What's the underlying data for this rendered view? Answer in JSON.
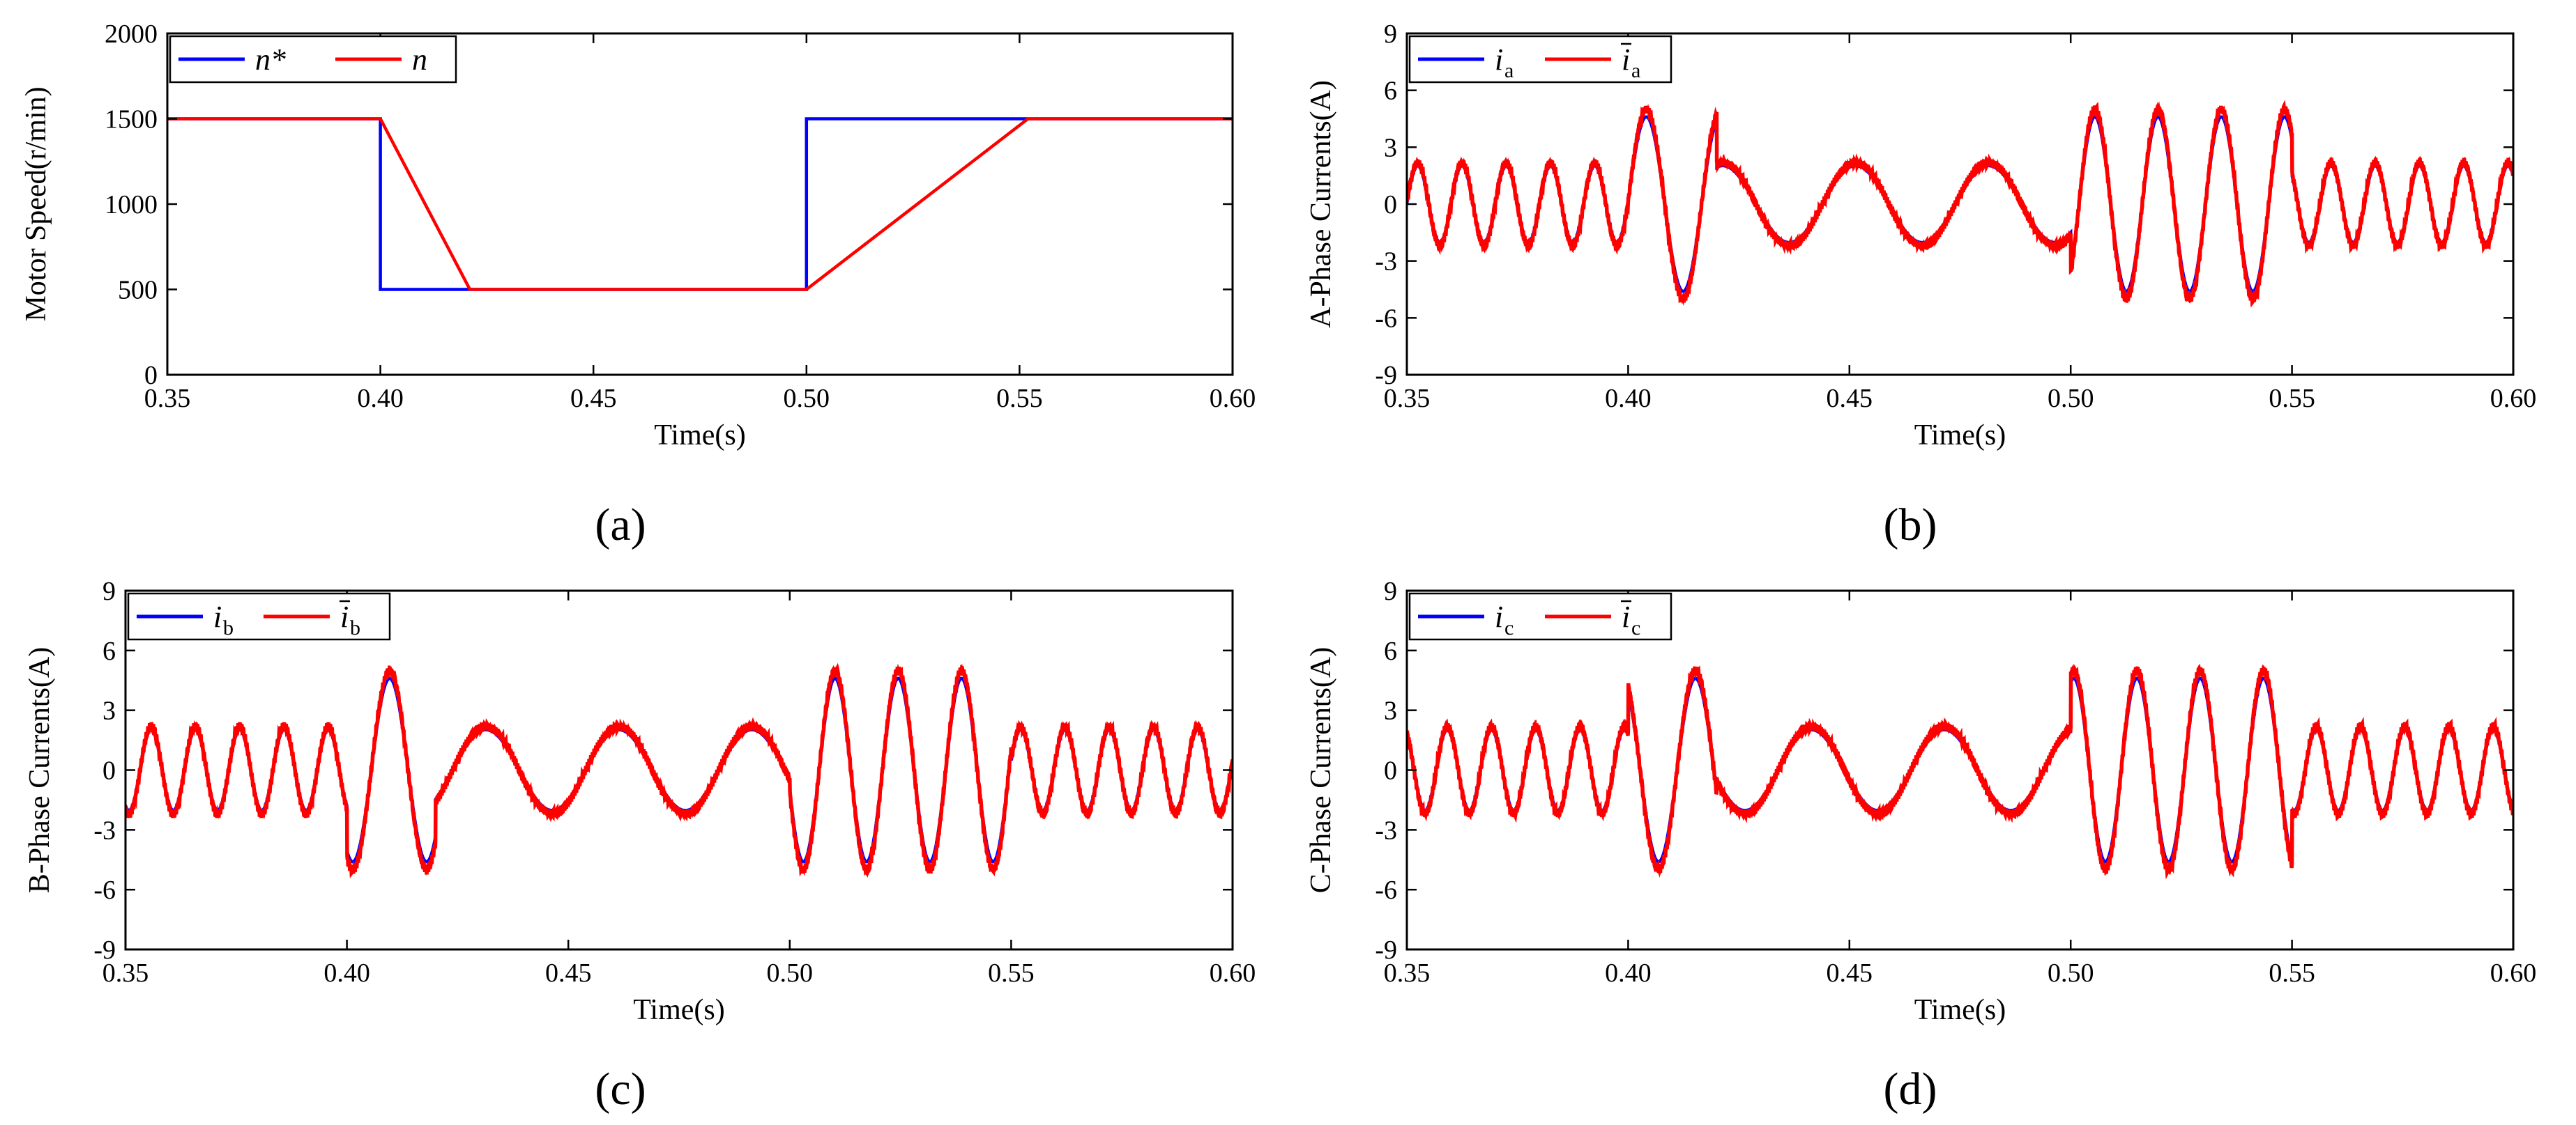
{
  "figure": {
    "panel_labels": [
      "(a)",
      "(b)",
      "(c)",
      "(d)"
    ]
  },
  "chart_data": [
    {
      "type": "line",
      "id": "a",
      "panel_label": "(a)",
      "xlabel": "Time(s)",
      "ylabel": "Motor Speed(r/min)",
      "xlim": [
        0.35,
        0.6
      ],
      "ylim": [
        0,
        2000
      ],
      "xticks": [
        "0.35",
        "0.40",
        "0.45",
        "0.50",
        "0.55",
        "0.60"
      ],
      "yticks": [
        "0",
        "500",
        "1000",
        "1500",
        "2000"
      ],
      "legend_position": "top-left",
      "series": [
        {
          "name": "n*",
          "legend_main": "n",
          "legend_suffix": "*",
          "color": "#0000ff",
          "x": [
            0.35,
            0.4,
            0.4,
            0.5,
            0.5,
            0.6
          ],
          "y": [
            1500,
            1500,
            500,
            500,
            1500,
            1500
          ]
        },
        {
          "name": "n",
          "legend_main": "n",
          "legend_suffix": "",
          "color": "#ff0000",
          "x": [
            0.35,
            0.4,
            0.421,
            0.5,
            0.552,
            0.6
          ],
          "y": [
            1500,
            1500,
            500,
            500,
            1500,
            1500
          ]
        }
      ]
    },
    {
      "type": "line",
      "id": "b",
      "panel_label": "(b)",
      "xlabel": "Time(s)",
      "ylabel": "A-Phase Currents(A)",
      "xlim": [
        0.35,
        0.6
      ],
      "ylim": [
        -9,
        9
      ],
      "xticks": [
        "0.35",
        "0.40",
        "0.45",
        "0.50",
        "0.55",
        "0.60"
      ],
      "yticks": [
        "-9",
        "-6",
        "-3",
        "0",
        "3",
        "6",
        "9"
      ],
      "legend_position": "top-left",
      "phase_offset_deg": 0,
      "series": [
        {
          "name": "i_a",
          "legend_main": "i",
          "legend_sub": "a",
          "bar": false,
          "color": "#0000ff"
        },
        {
          "name": "ī_a",
          "legend_main": "i",
          "legend_sub": "a",
          "bar": true,
          "color": "#ff0000"
        }
      ],
      "segments": [
        {
          "t_start": 0.35,
          "t_end": 0.4,
          "amplitude": 2.2,
          "frequency_hz": 100
        },
        {
          "t_start": 0.4,
          "t_end": 0.42,
          "amplitude": 5.0,
          "frequency_hz": 60
        },
        {
          "t_start": 0.42,
          "t_end": 0.5,
          "amplitude": 2.2,
          "frequency_hz": 33.3
        },
        {
          "t_start": 0.5,
          "t_end": 0.55,
          "amplitude": 5.0,
          "frequency_hz": 70
        },
        {
          "t_start": 0.55,
          "t_end": 0.6,
          "amplitude": 2.2,
          "frequency_hz": 100
        }
      ]
    },
    {
      "type": "line",
      "id": "c",
      "panel_label": "(c)",
      "xlabel": "Time(s)",
      "ylabel": "B-Phase Currents(A)",
      "xlim": [
        0.35,
        0.6
      ],
      "ylim": [
        -9,
        9
      ],
      "xticks": [
        "0.35",
        "0.40",
        "0.45",
        "0.50",
        "0.55",
        "0.60"
      ],
      "yticks": [
        "-9",
        "-6",
        "-3",
        "0",
        "3",
        "6",
        "9"
      ],
      "legend_position": "top-left",
      "phase_offset_deg": -120,
      "series": [
        {
          "name": "i_b",
          "legend_main": "i",
          "legend_sub": "b",
          "bar": false,
          "color": "#0000ff"
        },
        {
          "name": "ī_b",
          "legend_main": "i",
          "legend_sub": "b",
          "bar": true,
          "color": "#ff0000"
        }
      ],
      "segments": [
        {
          "t_start": 0.35,
          "t_end": 0.4,
          "amplitude": 2.2,
          "frequency_hz": 100
        },
        {
          "t_start": 0.4,
          "t_end": 0.42,
          "amplitude": 5.0,
          "frequency_hz": 60
        },
        {
          "t_start": 0.42,
          "t_end": 0.5,
          "amplitude": 2.2,
          "frequency_hz": 33.3
        },
        {
          "t_start": 0.5,
          "t_end": 0.55,
          "amplitude": 5.0,
          "frequency_hz": 70
        },
        {
          "t_start": 0.55,
          "t_end": 0.6,
          "amplitude": 2.2,
          "frequency_hz": 100
        }
      ]
    },
    {
      "type": "line",
      "id": "d",
      "panel_label": "(d)",
      "xlabel": "Time(s)",
      "ylabel": "C-Phase Currents(A)",
      "xlim": [
        0.35,
        0.6
      ],
      "ylim": [
        -9,
        9
      ],
      "xticks": [
        "0.35",
        "0.40",
        "0.45",
        "0.50",
        "0.55",
        "0.60"
      ],
      "yticks": [
        "-9",
        "-6",
        "-3",
        "0",
        "3",
        "6",
        "9"
      ],
      "legend_position": "top-left",
      "phase_offset_deg": 120,
      "series": [
        {
          "name": "i_c",
          "legend_main": "i",
          "legend_sub": "c",
          "bar": false,
          "color": "#0000ff"
        },
        {
          "name": "ī_c",
          "legend_main": "i",
          "legend_sub": "c",
          "bar": true,
          "color": "#ff0000"
        }
      ],
      "segments": [
        {
          "t_start": 0.35,
          "t_end": 0.4,
          "amplitude": 2.2,
          "frequency_hz": 100
        },
        {
          "t_start": 0.4,
          "t_end": 0.42,
          "amplitude": 5.0,
          "frequency_hz": 60
        },
        {
          "t_start": 0.42,
          "t_end": 0.5,
          "amplitude": 2.2,
          "frequency_hz": 33.3
        },
        {
          "t_start": 0.5,
          "t_end": 0.55,
          "amplitude": 5.0,
          "frequency_hz": 70
        },
        {
          "t_start": 0.55,
          "t_end": 0.6,
          "amplitude": 2.2,
          "frequency_hz": 100
        }
      ]
    }
  ]
}
